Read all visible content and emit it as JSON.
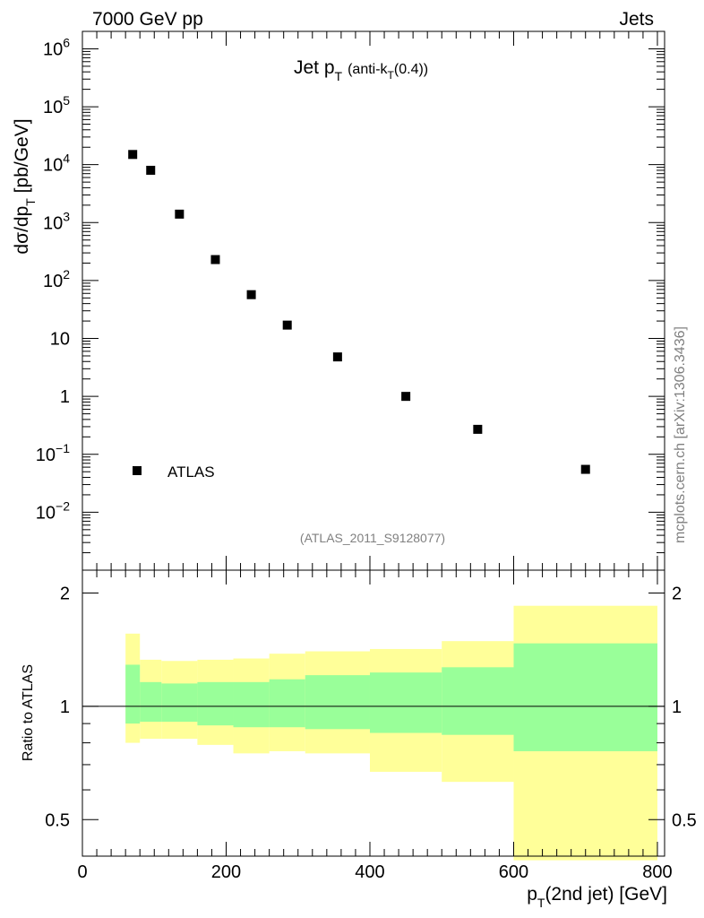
{
  "header": {
    "energy_label": "7000 GeV pp",
    "category_label": "Jets"
  },
  "side_label": "mcplots.cern.ch [arXiv:1306.3436]",
  "chart_data": [
    {
      "type": "scatter",
      "title_main": "Jet p",
      "title_main_sub": "T",
      "title_detail_a": "(anti-k",
      "title_detail_sub": "T",
      "title_detail_b": "(0.4))",
      "analysis_label": "(ATLAS_2011_S9128077)",
      "ylabel_a": "dσ/dp",
      "ylabel_sub": "T",
      "ylabel_b": " [pb/GeV]",
      "y_scale": "log",
      "ylim": [
        0.001,
        2000000
      ],
      "xlim": [
        0,
        810
      ],
      "y_tick_labels": [
        {
          "v": 1000000,
          "base": "10",
          "exp": "6"
        },
        {
          "v": 100000,
          "base": "10",
          "exp": "5"
        },
        {
          "v": 10000,
          "base": "10",
          "exp": "4"
        },
        {
          "v": 1000,
          "base": "10",
          "exp": "3"
        },
        {
          "v": 100,
          "base": "10",
          "exp": "2"
        },
        {
          "v": 10,
          "base": "10",
          "exp": ""
        },
        {
          "v": 1,
          "base": "1",
          "exp": ""
        },
        {
          "v": 0.1,
          "base": "10",
          "exp": "−1"
        },
        {
          "v": 0.01,
          "base": "10",
          "exp": "−2"
        }
      ],
      "legend": {
        "placement": "bottom-left",
        "entries": [
          "ATLAS"
        ]
      },
      "series": [
        {
          "name": "ATLAS",
          "x": [
            70,
            95,
            135,
            185,
            235,
            285,
            355,
            450,
            550,
            700
          ],
          "y": [
            15000,
            8000,
            1400,
            230,
            57,
            17,
            4.8,
            1.0,
            0.27,
            0.055
          ]
        }
      ]
    },
    {
      "type": "area",
      "ylabel": "Ratio to ATLAS",
      "xlabel_a": "p",
      "xlabel_sub": "T",
      "xlabel_b": "(2nd jet) [GeV]",
      "y_scale": "log",
      "ylim": [
        0.4,
        2.3
      ],
      "xlim": [
        0,
        810
      ],
      "x_ticks": [
        0,
        200,
        400,
        600,
        800
      ],
      "y_ticks": [
        0.5,
        1,
        2
      ],
      "y_tick_labels": [
        "0.5",
        "1",
        "2"
      ],
      "reference_line": 1,
      "bin_edges": [
        60,
        80,
        110,
        160,
        210,
        260,
        310,
        400,
        500,
        600,
        800
      ],
      "bands": [
        {
          "color": "#ffff99",
          "low": [
            0.8,
            0.82,
            0.82,
            0.79,
            0.75,
            0.76,
            0.75,
            0.67,
            0.63,
            0.39
          ],
          "high": [
            1.56,
            1.33,
            1.32,
            1.33,
            1.34,
            1.38,
            1.4,
            1.42,
            1.49,
            1.85
          ]
        },
        {
          "color": "#99ff99",
          "low": [
            0.9,
            0.91,
            0.91,
            0.89,
            0.88,
            0.88,
            0.87,
            0.85,
            0.84,
            0.76
          ],
          "high": [
            1.29,
            1.16,
            1.15,
            1.16,
            1.16,
            1.18,
            1.21,
            1.23,
            1.27,
            1.47
          ]
        }
      ]
    }
  ]
}
